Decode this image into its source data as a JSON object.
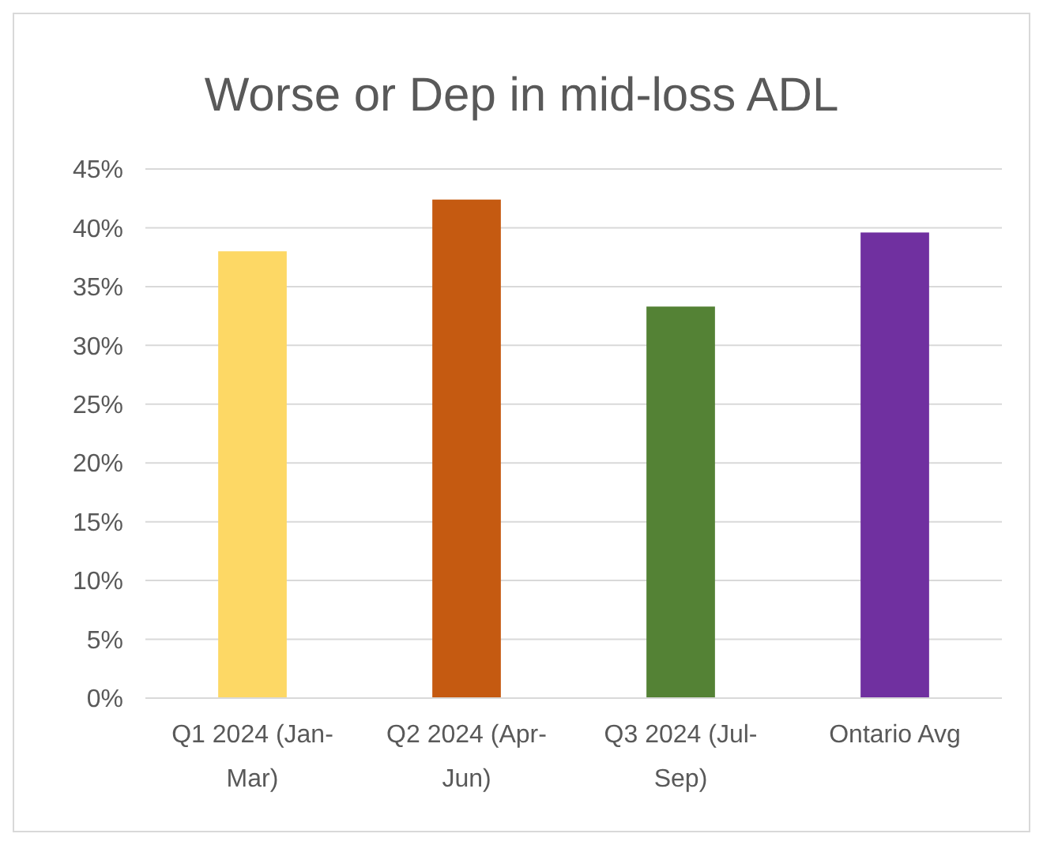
{
  "chart_data": {
    "type": "bar",
    "title": "Worse or Dep in mid-loss ADL",
    "categories": [
      "Q1 2024 (Jan-Mar)",
      "Q2 2024 (Apr-Jun)",
      "Q3 2024 (Jul-Sep)",
      "Ontario Avg"
    ],
    "values": [
      38.0,
      42.4,
      33.3,
      39.6
    ],
    "colors": [
      "#fdd865",
      "#c55a11",
      "#548235",
      "#7030a0"
    ],
    "ylim": [
      0,
      45
    ],
    "yticks": [
      {
        "value": 0,
        "label": "0%"
      },
      {
        "value": 5,
        "label": "5%"
      },
      {
        "value": 10,
        "label": "10%"
      },
      {
        "value": 15,
        "label": "15%"
      },
      {
        "value": 20,
        "label": "20%"
      },
      {
        "value": 25,
        "label": "25%"
      },
      {
        "value": 30,
        "label": "30%"
      },
      {
        "value": 35,
        "label": "35%"
      },
      {
        "value": 40,
        "label": "40%"
      },
      {
        "value": 45,
        "label": "45%"
      }
    ],
    "grid": "y"
  }
}
